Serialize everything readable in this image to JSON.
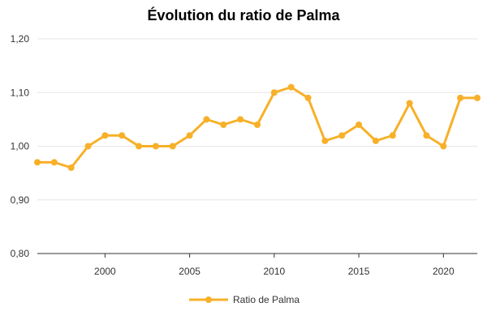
{
  "chart_data": {
    "type": "line",
    "title": "Évolution du ratio de Palma",
    "xlabel": "",
    "ylabel": "",
    "xlim": [
      1996,
      2022
    ],
    "ylim": [
      0.8,
      1.2
    ],
    "x_ticks": [
      2000,
      2005,
      2010,
      2015,
      2020
    ],
    "y_ticks": [
      {
        "value": 0.8,
        "label": "0,80"
      },
      {
        "value": 0.9,
        "label": "0,90"
      },
      {
        "value": 1.0,
        "label": "1,00"
      },
      {
        "value": 1.1,
        "label": "1,10"
      },
      {
        "value": 1.2,
        "label": "1,20"
      }
    ],
    "grid": true,
    "legend_position": "bottom",
    "series": [
      {
        "name": "Ratio de Palma",
        "color": "#f7b028",
        "x": [
          1996,
          1997,
          1998,
          1999,
          2000,
          2001,
          2002,
          2003,
          2004,
          2005,
          2006,
          2007,
          2008,
          2009,
          2010,
          2011,
          2012,
          2013,
          2014,
          2015,
          2016,
          2017,
          2018,
          2019,
          2020,
          2021,
          2022
        ],
        "y": [
          0.97,
          0.97,
          0.96,
          1.0,
          1.02,
          1.02,
          1.0,
          1.0,
          1.0,
          1.02,
          1.05,
          1.04,
          1.05,
          1.04,
          1.1,
          1.11,
          1.09,
          1.01,
          1.02,
          1.04,
          1.01,
          1.02,
          1.08,
          1.02,
          1.0,
          1.09,
          1.09
        ]
      }
    ]
  }
}
